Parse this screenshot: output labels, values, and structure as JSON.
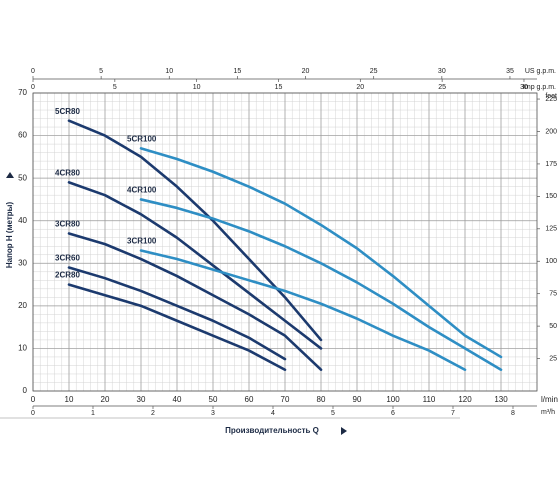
{
  "chart_data": {
    "type": "line",
    "y_label": "Напор H (метры)",
    "x_label": "Производительность Q",
    "x_unit": "l/min",
    "xlim": [
      0,
      140
    ],
    "xticks": [
      0,
      10,
      20,
      30,
      40,
      50,
      60,
      70,
      80,
      90,
      100,
      110,
      120,
      130
    ],
    "x2_unit": "m³/h",
    "x2lim": [
      0,
      8.4
    ],
    "x2ticks": [
      0,
      1,
      2,
      3,
      4,
      5,
      6,
      7,
      8
    ],
    "x3_unit": "US g.p.m.",
    "x3lim": [
      0,
      36.984
    ],
    "x3ticks": [
      0,
      5,
      10,
      15,
      20,
      25,
      30,
      35
    ],
    "x4_unit": "Imp g.p.m.",
    "x4lim": [
      0,
      30.796
    ],
    "x4ticks": [
      0,
      5,
      10,
      15,
      20,
      25,
      30
    ],
    "ylim": [
      0,
      70
    ],
    "yticks": [
      0,
      10,
      20,
      30,
      40,
      50,
      60,
      70
    ],
    "y2_unit": "feet",
    "y2lim": [
      0,
      229.659
    ],
    "y2ticks": [
      25,
      50,
      75,
      100,
      125,
      150,
      175,
      200,
      225
    ],
    "grid": true,
    "minor_grid_divisions": 5,
    "series": [
      {
        "name": "5CR80",
        "color": "#1c3a6e",
        "x": [
          10,
          20,
          30,
          40,
          50,
          60,
          70,
          80
        ],
        "values": [
          63.5,
          60,
          55,
          48,
          40,
          31,
          22,
          12
        ]
      },
      {
        "name": "4CR80",
        "color": "#1c3a6e",
        "x": [
          10,
          20,
          30,
          40,
          50,
          60,
          70,
          80
        ],
        "values": [
          49,
          46,
          41.5,
          36,
          29.5,
          23,
          16.5,
          10
        ]
      },
      {
        "name": "3CR80",
        "color": "#1c3a6e",
        "x": [
          10,
          20,
          30,
          40,
          50,
          60,
          70,
          80
        ],
        "values": [
          37,
          34.5,
          31,
          27,
          22.5,
          18,
          13,
          5
        ]
      },
      {
        "name": "3CR60",
        "color": "#1c3a6e",
        "x": [
          10,
          20,
          30,
          40,
          50,
          60,
          70
        ],
        "values": [
          29,
          26.5,
          23.5,
          20,
          16.5,
          12.5,
          7.5
        ]
      },
      {
        "name": "2CR80",
        "color": "#1c3a6e",
        "x": [
          10,
          20,
          30,
          40,
          50,
          60,
          70
        ],
        "values": [
          25,
          22.5,
          20,
          16.5,
          13,
          9.5,
          5
        ]
      },
      {
        "name": "5CR100",
        "color": "#2e8ec4",
        "x": [
          30,
          40,
          50,
          60,
          70,
          80,
          90,
          100,
          110,
          120,
          130
        ],
        "values": [
          57,
          54.5,
          51.5,
          48,
          44,
          39,
          33.5,
          27,
          20,
          13,
          8
        ]
      },
      {
        "name": "4CR100",
        "color": "#2e8ec4",
        "x": [
          30,
          40,
          50,
          60,
          70,
          80,
          90,
          100,
          110,
          120,
          130
        ],
        "values": [
          45,
          43,
          40.5,
          37.5,
          34,
          30,
          25.5,
          20.5,
          15,
          10,
          5
        ]
      },
      {
        "name": "3CR100",
        "color": "#2e8ec4",
        "x": [
          30,
          40,
          50,
          60,
          70,
          80,
          90,
          100,
          110,
          120
        ],
        "values": [
          33,
          31,
          28.5,
          26,
          23.5,
          20.5,
          17,
          13,
          9.5,
          5
        ]
      }
    ]
  }
}
